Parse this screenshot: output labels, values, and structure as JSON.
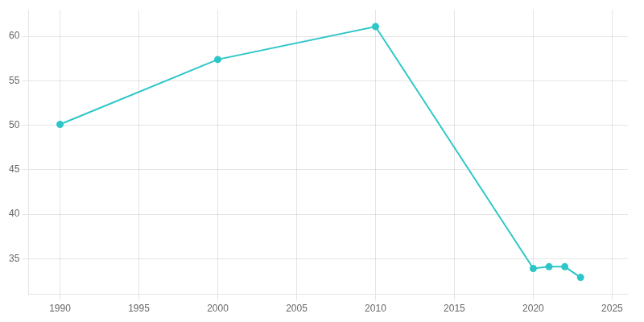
{
  "chart_data": {
    "type": "line",
    "x": [
      1990,
      2000,
      2010,
      2020,
      2021,
      2022,
      2023
    ],
    "values": [
      50.1,
      57.4,
      61.1,
      33.9,
      34.1,
      34.1,
      32.9
    ],
    "color": "#2dc6c8",
    "marker": "circle",
    "xlim": [
      1988,
      2026
    ],
    "ylim": [
      31,
      63
    ],
    "xticks": [
      1990,
      1995,
      2000,
      2005,
      2010,
      2015,
      2020,
      2025
    ],
    "yticks": [
      35,
      40,
      45,
      50,
      55,
      60
    ],
    "grid": true
  }
}
